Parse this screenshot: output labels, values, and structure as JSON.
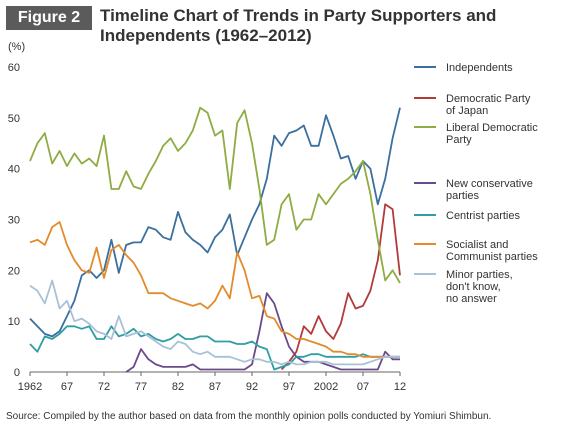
{
  "header": {
    "figure_label": "Figure 2",
    "title": "Timeline Chart of Trends in Party Supporters and Independents (1962–2012)"
  },
  "source": "Source: Compiled by the author based on data from the monthly opinion polls conducted by Yomiuri Shimbun.",
  "chart_data": {
    "type": "line",
    "ylabel": "(%)",
    "ylim": [
      0,
      60
    ],
    "yticks": [
      0,
      10,
      20,
      30,
      40,
      50,
      60
    ],
    "xlim": [
      1962,
      2012
    ],
    "xticks": [
      1962,
      1967,
      1972,
      1977,
      1982,
      1987,
      1992,
      1997,
      2002,
      2007,
      2012
    ],
    "xtick_labels": [
      "1962",
      "67",
      "72",
      "77",
      "82",
      "87",
      "92",
      "97",
      "2002",
      "07",
      "12"
    ],
    "grid": false,
    "legend_position": "right",
    "series": [
      {
        "name": "Independents",
        "color": "#3a6f9e",
        "x": [
          1962,
          1963,
          1964,
          1965,
          1966,
          1967,
          1968,
          1969,
          1970,
          1971,
          1972,
          1973,
          1974,
          1975,
          1976,
          1977,
          1978,
          1979,
          1980,
          1981,
          1982,
          1983,
          1984,
          1985,
          1986,
          1987,
          1988,
          1989,
          1990,
          1991,
          1992,
          1993,
          1994,
          1995,
          1996,
          1997,
          1998,
          1999,
          2000,
          2001,
          2002,
          2003,
          2004,
          2005,
          2006,
          2007,
          2008,
          2009,
          2010,
          2011,
          2012
        ],
        "y": [
          10.5,
          9,
          7.5,
          7,
          8,
          11,
          14,
          19,
          20,
          18.5,
          20,
          26,
          19.5,
          25,
          25.5,
          25.5,
          28.5,
          28,
          26.5,
          26,
          31.5,
          27.5,
          26,
          25,
          23.5,
          26.5,
          28,
          31,
          23,
          26.5,
          30,
          33,
          38,
          46.5,
          44.5,
          47,
          47.5,
          48.5,
          44.5,
          44.5,
          50.5,
          46.5,
          42,
          42.5,
          38,
          41.5,
          40,
          33,
          38,
          46,
          52
        ]
      },
      {
        "name": "Democratic Party of Japan",
        "color": "#b23a3a",
        "x": [
          1996,
          1997,
          1998,
          1999,
          2000,
          2001,
          2002,
          2003,
          2004,
          2005,
          2006,
          2007,
          2008,
          2009,
          2010,
          2011,
          2012
        ],
        "y": [
          0.5,
          2,
          4,
          9,
          7.5,
          11,
          8,
          6.5,
          9.5,
          15.5,
          12.5,
          13,
          16,
          22,
          33,
          32,
          19
        ]
      },
      {
        "name": "Liberal Democratic Party",
        "color": "#8eac42",
        "x": [
          1962,
          1963,
          1964,
          1965,
          1966,
          1967,
          1968,
          1969,
          1970,
          1971,
          1972,
          1973,
          1974,
          1975,
          1976,
          1977,
          1978,
          1979,
          1980,
          1981,
          1982,
          1983,
          1984,
          1985,
          1986,
          1987,
          1988,
          1989,
          1990,
          1991,
          1992,
          1993,
          1994,
          1995,
          1996,
          1997,
          1998,
          1999,
          2000,
          2001,
          2002,
          2003,
          2004,
          2005,
          2006,
          2007,
          2008,
          2009,
          2010,
          2011,
          2012
        ],
        "y": [
          41.5,
          45,
          47,
          41,
          43.5,
          40.5,
          43,
          41,
          42,
          40.5,
          46.5,
          36,
          36,
          39.5,
          36.5,
          36,
          39,
          41.5,
          44.5,
          46,
          43.5,
          45,
          47.5,
          52,
          51,
          46.5,
          47.5,
          36,
          49,
          51.5,
          45,
          36,
          25,
          26,
          33,
          35,
          28,
          30,
          30,
          35,
          33,
          35,
          37,
          38,
          39.5,
          41.5,
          35,
          26,
          18,
          20,
          17.5
        ]
      },
      {
        "name": "New conservative parties",
        "color": "#6b4a8a",
        "x": [
          1975,
          1976,
          1977,
          1978,
          1979,
          1980,
          1981,
          1982,
          1983,
          1984,
          1985,
          1986,
          1987,
          1988,
          1989,
          1990,
          1991,
          1992,
          1993,
          1994,
          1995,
          1996,
          1997,
          1998,
          1999,
          2000,
          2001,
          2002,
          2003,
          2004,
          2005,
          2006,
          2007,
          2008,
          2009,
          2010,
          2011,
          2012
        ],
        "y": [
          0,
          1,
          4.5,
          2.5,
          1.5,
          1,
          1,
          1,
          1,
          1.5,
          0.5,
          0.5,
          0.5,
          0.5,
          0.5,
          0.5,
          0.5,
          1.5,
          8,
          15.5,
          13.5,
          9,
          5,
          3,
          2,
          2,
          2,
          1.5,
          1,
          0.5,
          0.5,
          0.5,
          0.5,
          0.5,
          0.5,
          4,
          2.5,
          2.5
        ]
      },
      {
        "name": "Centrist parties",
        "color": "#2e9ea3",
        "x": [
          1962,
          1963,
          1964,
          1965,
          1966,
          1967,
          1968,
          1969,
          1970,
          1971,
          1972,
          1973,
          1974,
          1975,
          1976,
          1977,
          1978,
          1979,
          1980,
          1981,
          1982,
          1983,
          1984,
          1985,
          1986,
          1987,
          1988,
          1989,
          1990,
          1991,
          1992,
          1993,
          1994,
          1995,
          1996,
          1997,
          1998,
          1999,
          2000,
          2001,
          2002,
          2003,
          2004,
          2005,
          2006,
          2007,
          2008,
          2009,
          2010,
          2011,
          2012
        ],
        "y": [
          5.5,
          4,
          7,
          6.5,
          7.5,
          9,
          9,
          8.5,
          9,
          6.5,
          6.5,
          9,
          7,
          7.5,
          8.5,
          7,
          7.5,
          6.5,
          6,
          6.5,
          7.5,
          6.5,
          6.5,
          7,
          7,
          6,
          6,
          6,
          5.5,
          5.5,
          6,
          5,
          4.5,
          0.5,
          1,
          1.5,
          3,
          3,
          3.5,
          3.5,
          3,
          3,
          3,
          3,
          3,
          3.5,
          3,
          3,
          3,
          3,
          3
        ]
      },
      {
        "name": "Socialist and Communist parties",
        "color": "#e38b2c",
        "x": [
          1962,
          1963,
          1964,
          1965,
          1966,
          1967,
          1968,
          1969,
          1970,
          1971,
          1972,
          1973,
          1974,
          1975,
          1976,
          1977,
          1978,
          1979,
          1980,
          1981,
          1982,
          1983,
          1984,
          1985,
          1986,
          1987,
          1988,
          1989,
          1990,
          1991,
          1992,
          1993,
          1994,
          1995,
          1996,
          1997,
          1998,
          1999,
          2000,
          2001,
          2002,
          2003,
          2004,
          2005,
          2006,
          2007,
          2008,
          2009,
          2010,
          2011,
          2012
        ],
        "y": [
          25.5,
          26,
          25,
          28.5,
          29.5,
          25,
          22,
          20,
          19.5,
          24.5,
          18.5,
          24,
          25,
          23,
          21.5,
          19,
          15.5,
          15.5,
          15.5,
          14.5,
          14,
          13.5,
          13,
          13.5,
          12.5,
          14,
          17,
          14.5,
          23.5,
          20,
          14.5,
          15,
          11,
          10.5,
          8,
          7.5,
          6.5,
          6.5,
          6,
          5.5,
          5,
          4,
          4,
          3.5,
          3.5,
          3,
          3,
          3,
          3,
          3,
          3
        ]
      },
      {
        "name": "Minor parties, don't know, no answer",
        "color": "#a9c1d6",
        "x": [
          1962,
          1963,
          1964,
          1965,
          1966,
          1967,
          1968,
          1969,
          1970,
          1971,
          1972,
          1973,
          1974,
          1975,
          1976,
          1977,
          1978,
          1979,
          1980,
          1981,
          1982,
          1983,
          1984,
          1985,
          1986,
          1987,
          1988,
          1989,
          1990,
          1991,
          1992,
          1993,
          1994,
          1995,
          1996,
          1997,
          1998,
          1999,
          2000,
          2001,
          2002,
          2003,
          2004,
          2005,
          2006,
          2007,
          2008,
          2009,
          2010,
          2011,
          2012
        ],
        "y": [
          17,
          16,
          13.5,
          18,
          12.5,
          14,
          10,
          10.5,
          9.5,
          8,
          7.5,
          6.5,
          11,
          7,
          7.5,
          8,
          7,
          6,
          5,
          4.5,
          6,
          5.5,
          4,
          3.5,
          4,
          3,
          3,
          3,
          2.5,
          2,
          2.5,
          2.5,
          2,
          2,
          1.5,
          2,
          1.5,
          1.5,
          2,
          2,
          2,
          1.5,
          1.5,
          1.5,
          1.5,
          1.5,
          2,
          2.5,
          3,
          3,
          3
        ]
      }
    ],
    "legend": [
      {
        "lines": [
          "Independents"
        ],
        "color": "#3a6f9e"
      },
      {
        "lines": [
          "Democratic Party",
          "of Japan"
        ],
        "color": "#b23a3a"
      },
      {
        "lines": [
          "Liberal Democratic",
          "Party"
        ],
        "color": "#8eac42"
      },
      {
        "lines": [
          "New conservative",
          "parties"
        ],
        "color": "#6b4a8a"
      },
      {
        "lines": [
          "Centrist parties"
        ],
        "color": "#2e9ea3"
      },
      {
        "lines": [
          "Socialist and",
          "Communist parties"
        ],
        "color": "#e38b2c"
      },
      {
        "lines": [
          "Minor parties,",
          "don't know,",
          "no answer"
        ],
        "color": "#a9c1d6"
      }
    ]
  }
}
